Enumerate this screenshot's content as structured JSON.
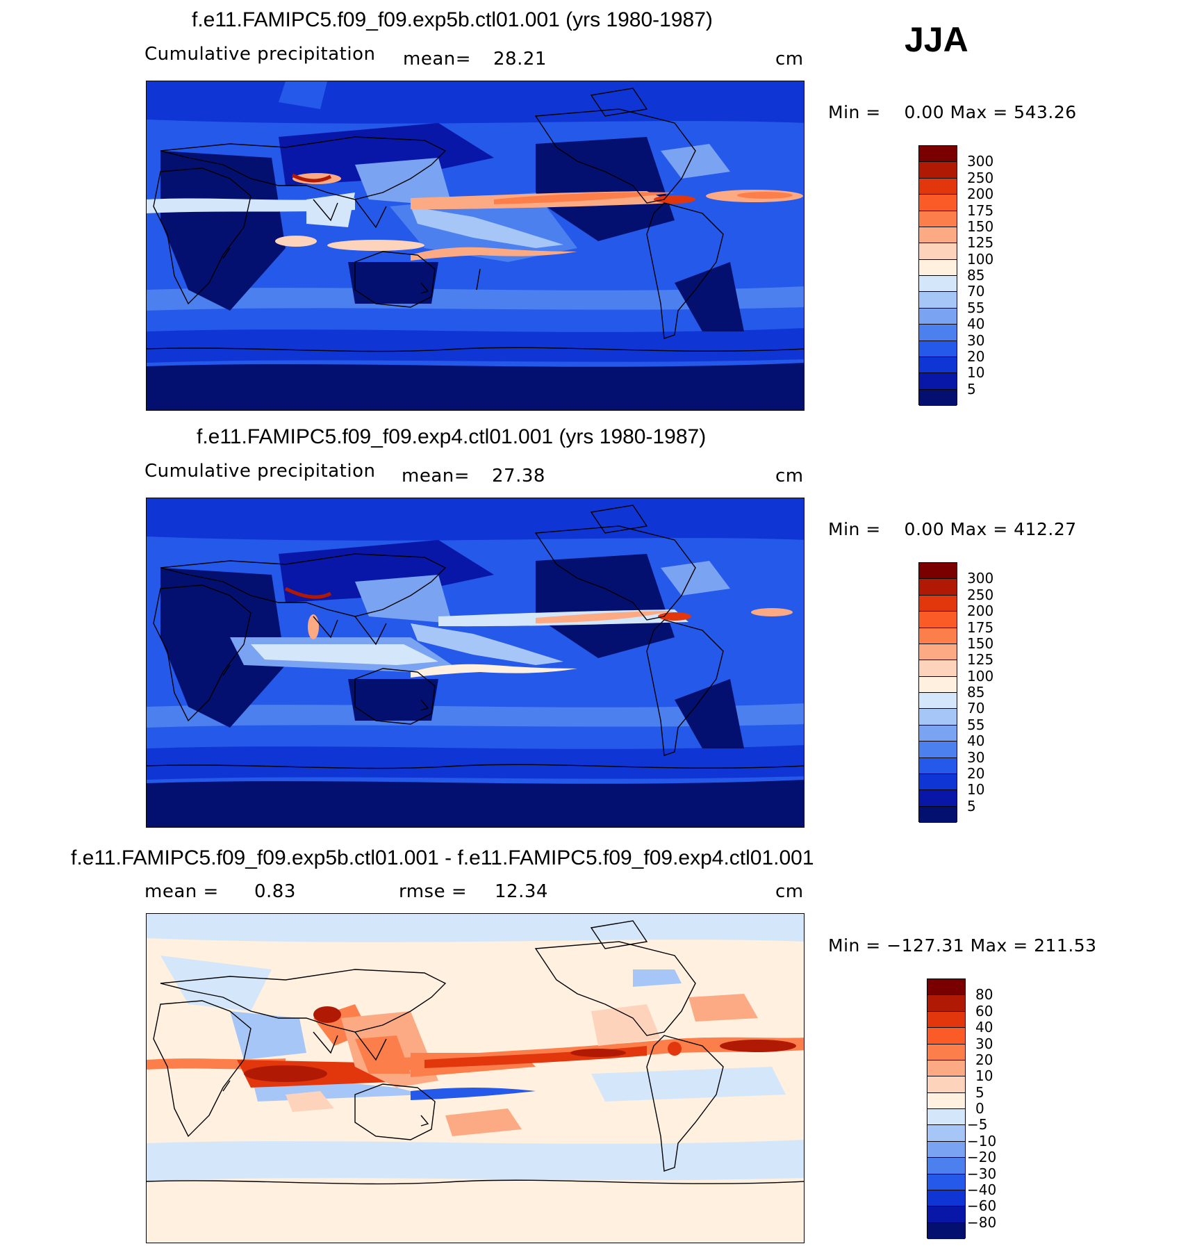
{
  "season": "JJA",
  "panels": [
    {
      "title": "f.e11.FAMIPC5.f09_f09.exp5b.ctl01.001 (yrs 1980-1987)",
      "left_label": "Cumulative precipitation",
      "stat_label": "mean=",
      "stat_value": "28.21",
      "units": "cm",
      "minmax": "Min =    0.00 Max = 543.26",
      "colorbar": {
        "labels": [
          "300",
          "250",
          "200",
          "175",
          "150",
          "125",
          "100",
          "85",
          "70",
          "55",
          "40",
          "30",
          "20",
          "10",
          "5"
        ],
        "colors": [
          "#7a0000",
          "#b01a05",
          "#e2370c",
          "#fb5b26",
          "#fc7f4b",
          "#fcaa84",
          "#fdd4bb",
          "#fff0df",
          "#d4e6fa",
          "#a6c6f8",
          "#7aa3f2",
          "#4b80ee",
          "#2559e9",
          "#0f36d4",
          "#0917a8",
          "#031070"
        ]
      }
    },
    {
      "title": "f.e11.FAMIPC5.f09_f09.exp4.ctl01.001 (yrs 1980-1987)",
      "left_label": "Cumulative precipitation",
      "stat_label": "mean=",
      "stat_value": "27.38",
      "units": "cm",
      "minmax": "Min =    0.00 Max = 412.27",
      "colorbar": {
        "labels": [
          "300",
          "250",
          "200",
          "175",
          "150",
          "125",
          "100",
          "85",
          "70",
          "55",
          "40",
          "30",
          "20",
          "10",
          "5"
        ],
        "colors": [
          "#7a0000",
          "#b01a05",
          "#e2370c",
          "#fb5b26",
          "#fc7f4b",
          "#fcaa84",
          "#fdd4bb",
          "#fff0df",
          "#d4e6fa",
          "#a6c6f8",
          "#7aa3f2",
          "#4b80ee",
          "#2559e9",
          "#0f36d4",
          "#0917a8",
          "#031070"
        ]
      }
    },
    {
      "title": "f.e11.FAMIPC5.f09_f09.exp5b.ctl01.001 - f.e11.FAMIPC5.f09_f09.exp4.ctl01.001",
      "left_label": "mean =",
      "left_value": "0.83",
      "stat_label": "rmse =",
      "stat_value": "12.34",
      "units": "cm",
      "minmax": "Min = −127.31 Max = 211.53",
      "colorbar": {
        "labels": [
          "80",
          "60",
          "40",
          "30",
          "20",
          "10",
          "5",
          "0",
          "−5",
          "−10",
          "−20",
          "−30",
          "−40",
          "−60",
          "−80"
        ],
        "colors": [
          "#7a0000",
          "#b01a05",
          "#e2370c",
          "#fb5b26",
          "#fc7f4b",
          "#fcaa84",
          "#fdd4bb",
          "#fff0df",
          "#d4e6fa",
          "#a6c6f8",
          "#7aa3f2",
          "#4b80ee",
          "#2559e9",
          "#0f36d4",
          "#0917a8",
          "#031070"
        ]
      }
    }
  ]
}
